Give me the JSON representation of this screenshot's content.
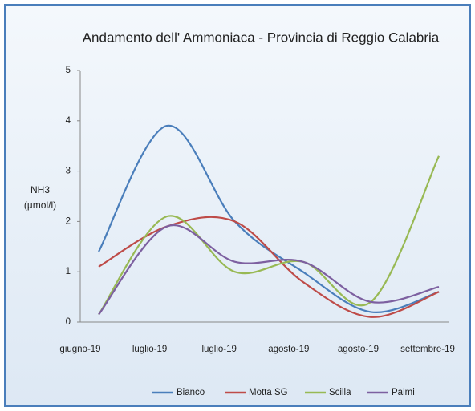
{
  "chart_data": {
    "type": "line",
    "title": "Andamento dell' Ammoniaca - Provincia di Reggio Calabria",
    "ylabel": [
      "NH3",
      "(µmol/l)"
    ],
    "categories": [
      "giugno-19",
      "luglio-19",
      "luglio-19",
      "agosto-19",
      "agosto-19",
      "settembre-19"
    ],
    "series": [
      {
        "name": "Bianco",
        "color": "#4a7ebb",
        "values": [
          1.4,
          3.9,
          2.0,
          1.0,
          0.2,
          0.6
        ]
      },
      {
        "name": "Motta SG",
        "color": "#be4b48",
        "values": [
          1.1,
          1.9,
          2.0,
          0.8,
          0.1,
          0.6
        ]
      },
      {
        "name": "Scilla",
        "color": "#98b954",
        "values": [
          0.15,
          2.1,
          1.0,
          1.2,
          0.4,
          3.3
        ]
      },
      {
        "name": "Palmi",
        "color": "#7d60a0",
        "values": [
          0.15,
          1.9,
          1.2,
          1.2,
          0.4,
          0.7
        ]
      }
    ],
    "ylim": [
      0,
      5
    ],
    "yticks": [
      0,
      1,
      2,
      3,
      4,
      5
    ],
    "legend": "bottom"
  }
}
